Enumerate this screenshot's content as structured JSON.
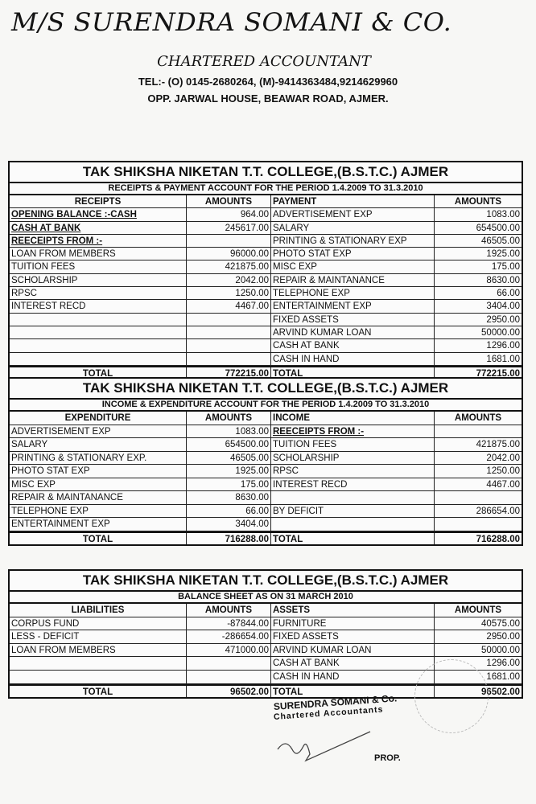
{
  "letterhead": {
    "firm_name": "M/S SURENDRA SOMANI & CO.",
    "designation": "CHARTERED ACCOUNTANT",
    "telephone": "TEL:- (O) 0145-2680264, (M)-9414363484,9214629960",
    "address": "OPP. JARWAL HOUSE, BEAWAR ROAD, AJMER."
  },
  "tables": [
    {
      "title": "TAK SHIKSHA NIKETAN T.T. COLLEGE,(B.S.T.C.) AJMER",
      "subtitle": "RECEIPTS & PAYMENT ACCOUNT FOR THE PERIOD 1.4.2009 TO 31.3.2010",
      "headers": [
        "RECEIPTS",
        "AMOUNTS",
        "PAYMENT",
        "AMOUNTS"
      ],
      "rows": [
        [
          "OPENING BALANCE :-CASH",
          "964.00",
          "ADVERTISEMENT EXP",
          "1083.00"
        ],
        [
          "CASH AT BANK",
          "245617.00",
          "SALARY",
          "654500.00"
        ],
        [
          "REECEIPTS FROM :-",
          "",
          "PRINTING & STATIONARY EXP",
          "46505.00"
        ],
        [
          "LOAN FROM MEMBERS",
          "96000.00",
          "PHOTO STAT EXP",
          "1925.00"
        ],
        [
          "TUITION FEES",
          "421875.00",
          "MISC EXP",
          "175.00"
        ],
        [
          "SCHOLARSHIP",
          "2042.00",
          "REPAIR & MAINTANANCE",
          "8630.00"
        ],
        [
          "RPSC",
          "1250.00",
          "TELEPHONE EXP",
          "66.00"
        ],
        [
          "INTEREST RECD",
          "4467.00",
          "ENTERTAINMENT EXP",
          "3404.00"
        ],
        [
          "",
          "",
          "FIXED ASSETS",
          "2950.00"
        ],
        [
          "",
          "",
          "ARVIND KUMAR LOAN",
          "50000.00"
        ],
        [
          "",
          "",
          "CASH AT BANK",
          "1296.00"
        ],
        [
          "",
          "",
          "CASH IN HAND",
          "1681.00"
        ]
      ],
      "total": [
        "TOTAL",
        "772215.00",
        "TOTAL",
        "772215.00"
      ]
    },
    {
      "title": "TAK SHIKSHA NIKETAN T.T. COLLEGE,(B.S.T.C.) AJMER",
      "subtitle": "INCOME & EXPENDITURE ACCOUNT FOR THE PERIOD 1.4.2009 TO 31.3.2010",
      "headers": [
        "EXPENDITURE",
        "AMOUNTS",
        "INCOME",
        "AMOUNTS"
      ],
      "rows": [
        [
          "ADVERTISEMENT EXP",
          "1083.00",
          "REECEIPTS FROM :-",
          ""
        ],
        [
          "SALARY",
          "654500.00",
          "TUITION FEES",
          "421875.00"
        ],
        [
          "PRINTING & STATIONARY EXP.",
          "46505.00",
          "SCHOLARSHIP",
          "2042.00"
        ],
        [
          "PHOTO STAT EXP",
          "1925.00",
          "RPSC",
          "1250.00"
        ],
        [
          "MISC EXP",
          "175.00",
          "INTEREST RECD",
          "4467.00"
        ],
        [
          "REPAIR & MAINTANANCE",
          "8630.00",
          "",
          ""
        ],
        [
          "TELEPHONE EXP",
          "66.00",
          "BY DEFICIT",
          "286654.00"
        ],
        [
          "ENTERTAINMENT EXP",
          "3404.00",
          "",
          ""
        ]
      ],
      "total": [
        "TOTAL",
        "716288.00",
        "TOTAL",
        "716288.00"
      ]
    },
    {
      "title": "TAK SHIKSHA NIKETAN T.T. COLLEGE,(B.S.T.C.) AJMER",
      "subtitle": "BALANCE SHEET  AS ON 31 MARCH 2010",
      "headers": [
        "LIABILITIES",
        "AMOUNTS",
        "ASSETS",
        "AMOUNTS"
      ],
      "rows": [
        [
          "CORPUS FUND",
          "-87844.00",
          "FURNITURE",
          "40575.00"
        ],
        [
          "LESS - DEFICIT",
          "-286654.00",
          "FIXED ASSETS",
          "2950.00"
        ],
        [
          "LOAN FROM MEMBERS",
          "471000.00",
          "ARVIND KUMAR LOAN",
          "50000.00"
        ],
        [
          "",
          "",
          "CASH AT BANK",
          "1296.00"
        ],
        [
          "",
          "",
          "CASH IN HAND",
          "1681.00"
        ]
      ],
      "total": [
        "TOTAL",
        "96502.00",
        "TOTAL",
        "96502.00"
      ]
    }
  ],
  "signature": {
    "firm": "SURENDRA SOMANI & Co.",
    "role": "Chartered Accountants",
    "designation": "PROP."
  }
}
